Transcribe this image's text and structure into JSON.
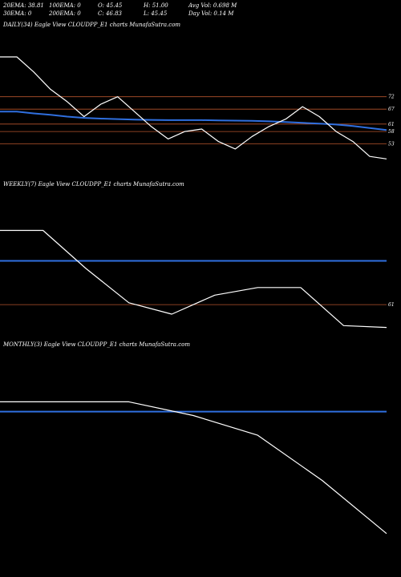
{
  "header": {
    "ema20": "20EMA: 38.81",
    "ema100": "100EMA: 0",
    "open": "O: 45.45",
    "high": "H: 51.00",
    "avg_vol": "Avg Vol: 0.698  M",
    "ema30": "30EMA: 0",
    "ema200": "200EMA: 0",
    "close": "C: 46.83",
    "low": "L: 45.45",
    "day_vol": "Day Vol: 0.14  M"
  },
  "panels": {
    "daily": {
      "title": "DAILY(34) Eagle   View  CLOUDPP_E1 charts MunafaSutra.com"
    },
    "weekly": {
      "title": "WEEKLY(7) Eagle   View  CLOUDPP_E1 charts MunafaSutra.com"
    },
    "monthly": {
      "title": "MONTHLY(3) Eagle   View  CLOUDPP_E1 charts MunafaSutra.com"
    }
  },
  "colors": {
    "price": "#ffffff",
    "ema": "#2f6fdf",
    "level": "#b5542c",
    "background": "#000000"
  },
  "chart_data": [
    {
      "type": "line",
      "panel": "daily",
      "series": [
        {
          "values": [
            88,
            88,
            82,
            75,
            70,
            64,
            69,
            72,
            66,
            60,
            55,
            58,
            59,
            54,
            51,
            56,
            60,
            63,
            68,
            64,
            58,
            54,
            48,
            47
          ]
        },
        {
          "values": [
            66,
            66,
            65.3,
            64.7,
            64,
            63.5,
            63.2,
            63,
            62.8,
            62.7,
            62.6,
            62.6,
            62.6,
            62.5,
            62.4,
            62.3,
            62.1,
            61.8,
            61.5,
            61.2,
            60.8,
            60.2,
            59.4,
            58.6
          ]
        }
      ],
      "levels": [
        {
          "label": "72",
          "value": 72
        },
        {
          "label": "67",
          "value": 67
        },
        {
          "label": "61",
          "value": 61
        },
        {
          "label": "58",
          "value": 58
        },
        {
          "label": "53",
          "value": 53
        }
      ],
      "ylim": [
        40,
        98
      ]
    },
    {
      "type": "line",
      "panel": "weekly",
      "series": [
        {
          "values": [
            100,
            100,
            80,
            62,
            56,
            66,
            70,
            70,
            50,
            49
          ]
        },
        {
          "values": [
            84,
            84,
            84,
            84,
            84,
            84,
            84,
            84,
            84,
            84
          ]
        }
      ],
      "levels": [
        {
          "label": "61",
          "value": 61
        }
      ],
      "ylim": [
        40,
        120
      ]
    },
    {
      "type": "line",
      "panel": "monthly",
      "series": [
        {
          "values": [
            85,
            85,
            85,
            78,
            68,
            45,
            18
          ]
        },
        {
          "values": [
            80,
            80,
            80,
            80,
            80,
            80,
            80
          ]
        }
      ],
      "levels": [],
      "ylim": [
        0,
        110
      ]
    }
  ]
}
